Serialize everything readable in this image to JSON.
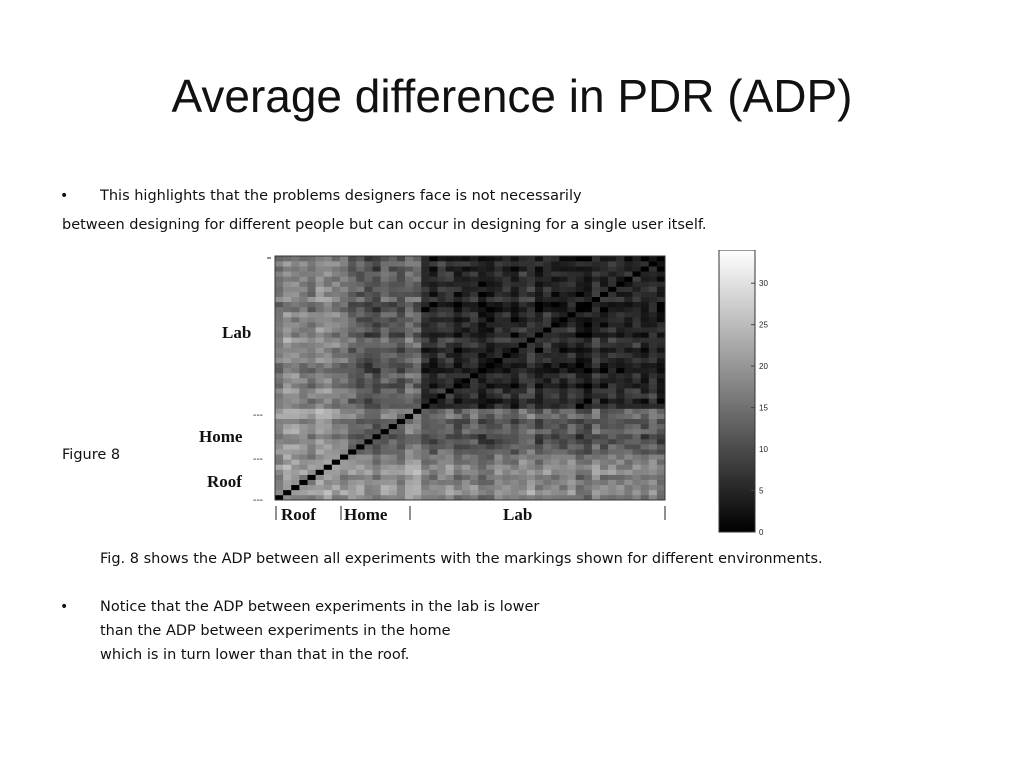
{
  "slide": {
    "title": "Average difference in PDR (ADP)",
    "bullet_char": "•",
    "intro_line1": "This highlights that the problems designers face is not necessarily",
    "intro_line2": "between designing for different people but can occur in designing for a single user itself.",
    "figure_label": "Figure 8",
    "caption": "Fig. 8 shows the ADP between all experiments with the markings shown for different environments.",
    "notice_line1": "Notice that the ADP between experiments in the lab is lower",
    "notice_line2": "than the ADP between experiments in the home",
    "notice_line3": "which is in turn lower than that in the roof."
  },
  "figure": {
    "y_labels": [
      "Lab",
      "Home",
      "Roof"
    ],
    "x_labels": [
      "Roof",
      "Home",
      "Lab"
    ],
    "separator_mark": "---",
    "colorbar_ticks": [
      "30",
      "25",
      "20",
      "15",
      "10",
      "5",
      "0"
    ],
    "colors": {
      "scale_low": "#000000",
      "scale_high": "#ffffff"
    }
  },
  "chart_data": {
    "type": "heatmap",
    "title": "",
    "grid_size": 48,
    "environments": [
      {
        "name": "Roof",
        "experiments": 9
      },
      {
        "name": "Home",
        "experiments": 9
      },
      {
        "name": "Lab",
        "experiments": 30
      }
    ],
    "colorbar": {
      "min": 0,
      "max": 34,
      "ticks": [
        0,
        5,
        10,
        15,
        20,
        25,
        30
      ]
    },
    "diagonal_value": 0,
    "typical_adp": {
      "lab_lab": 5,
      "home_home": 14,
      "roof_roof": 22,
      "lab_home": 12,
      "lab_roof": 18,
      "home_roof": 20
    }
  }
}
